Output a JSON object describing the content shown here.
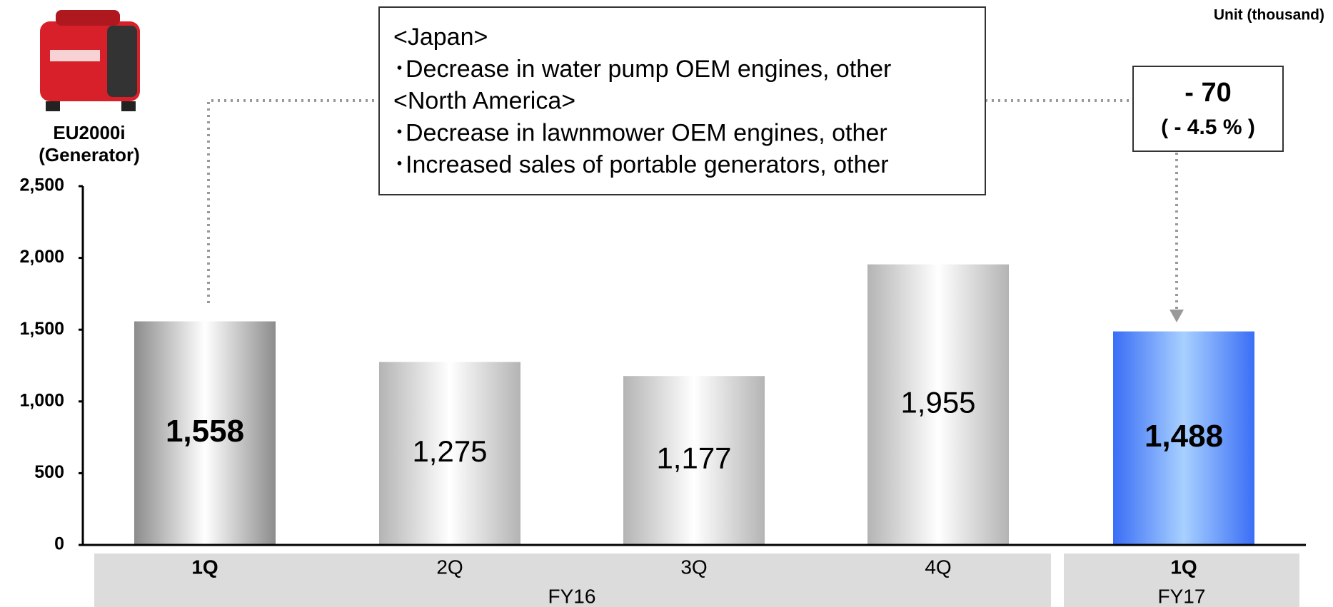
{
  "chart_data": {
    "type": "bar",
    "unit": "Unit (thousand)",
    "product_name": "EU2000i",
    "product_type": "(Generator)",
    "categories": [
      "1Q",
      "2Q",
      "3Q",
      "4Q",
      "1Q"
    ],
    "groups": [
      "FY16",
      "FY17"
    ],
    "values": [
      1558,
      1275,
      1177,
      1955,
      1488
    ],
    "value_labels": [
      "1,558",
      "1,275",
      "1,177",
      "1,955",
      "1,488"
    ],
    "colors": [
      "#8c8c8c",
      "#b4b4b4",
      "#b4b4b4",
      "#b4b4b4",
      "#3a6ef5"
    ],
    "highlight": [
      true,
      false,
      false,
      false,
      true
    ],
    "ylim": [
      0,
      2500
    ],
    "yticks": [
      0,
      500,
      {
        "value": 1000,
        "label": "1,000"
      },
      {
        "value": 1500,
        "label": "1,500"
      },
      {
        "value": 2000,
        "label": "2,000"
      },
      {
        "value": 2500,
        "label": "2,500"
      }
    ],
    "notes": [
      "<Japan>",
      "･Decrease in water pump OEM engines, other",
      "<North America>",
      "･Decrease in lawnmower OEM engines, other",
      "･Increased sales of portable generators, other"
    ],
    "change": "- 70",
    "change_pct": "( - 4.5 % )"
  }
}
